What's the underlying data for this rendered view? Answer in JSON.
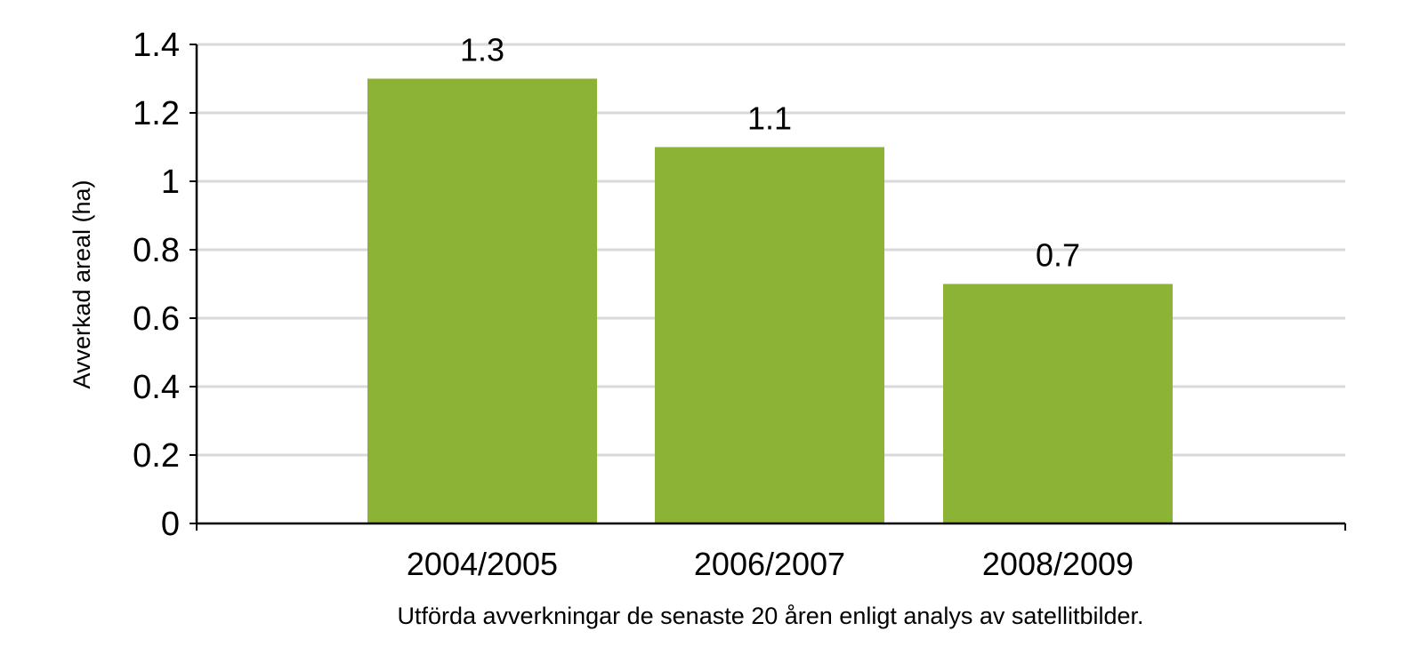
{
  "chart_data": {
    "type": "bar",
    "categories": [
      "2004/2005",
      "2006/2007",
      "2008/2009"
    ],
    "values": [
      1.3,
      1.1,
      0.7
    ],
    "data_labels": [
      "1.3",
      "1.1",
      "0.7"
    ],
    "title": "",
    "xlabel": "Utförda avverkningar de senaste 20 åren enligt analys av satellitbilder.",
    "ylabel": "Avverkad areal (ha)",
    "ylim": [
      0,
      1.4
    ],
    "yticks": [
      0,
      0.2,
      0.4,
      0.6,
      0.8,
      1,
      1.2,
      1.4
    ],
    "ytick_labels": [
      "0",
      "0.2",
      "0.4",
      "0.6",
      "0.8",
      "1",
      "1.2",
      "1.4"
    ],
    "grid": true,
    "legend": "none",
    "colors": {
      "bar": "#8cb236",
      "grid": "#d9d9d9",
      "axis": "#000000"
    }
  }
}
